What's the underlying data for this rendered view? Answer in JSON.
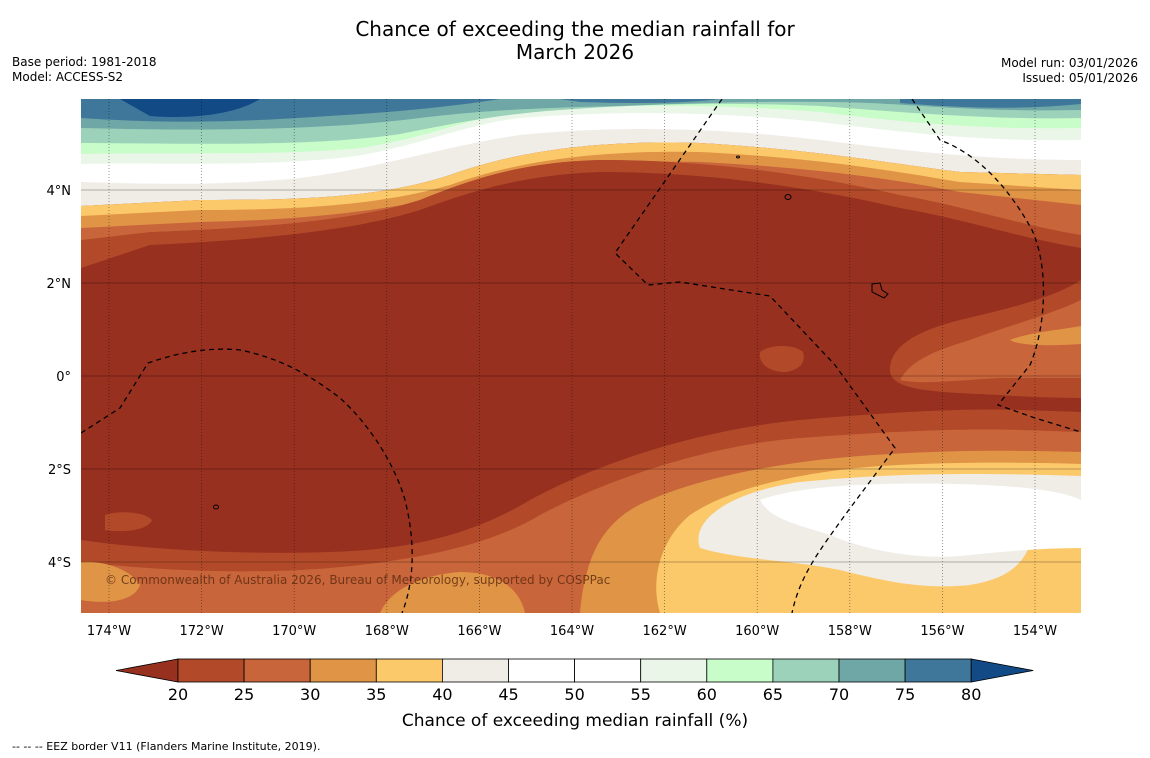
{
  "title": {
    "line1": "Chance of exceeding the median rainfall for",
    "line2": "March 2026"
  },
  "meta_left": {
    "base_period": "Base period: 1981-2018",
    "model": "Model: ACCESS-S2"
  },
  "meta_right": {
    "model_run": "Model run: 03/01/2026",
    "issued": "Issued: 05/01/2026"
  },
  "map": {
    "lon_labels": [
      "174°W",
      "172°W",
      "170°W",
      "168°W",
      "166°W",
      "164°W",
      "162°W",
      "160°W",
      "158°W",
      "156°W",
      "154°W"
    ],
    "lat_labels": [
      "4°N",
      "2°N",
      "0°",
      "2°S",
      "4°S"
    ],
    "copyright": "© Commonwealth of Australia 2026, Bureau of Meteorology, supported by COSPPac"
  },
  "colorbar": {
    "label": "Chance of exceeding median rainfall (%)",
    "ticks": [
      "20",
      "25",
      "30",
      "35",
      "40",
      "45",
      "50",
      "55",
      "60",
      "65",
      "70",
      "75",
      "80"
    ],
    "colors": [
      "#983020",
      "#b24a2a",
      "#c9653a",
      "#e09546",
      "#fcc96a",
      "#f0ece6",
      "#ffffff",
      "#ffffff",
      "#eaf7e8",
      "#c8fcc8",
      "#9dd2ba",
      "#6fa6a6",
      "#3f779a",
      "#124a85"
    ]
  },
  "footnote": "--  --  -- EEZ border V11 (Flanders Marine Institute, 2019)."
}
